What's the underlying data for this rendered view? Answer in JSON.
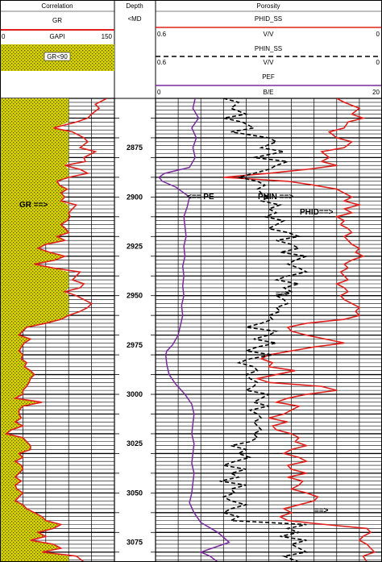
{
  "header": {
    "correlation": {
      "title": "Correlation",
      "curve_name": "GR",
      "unit": "GAPI",
      "scale_min": "0",
      "scale_max": "150",
      "fill_label": "GR<90",
      "fill_color": "#d7d300"
    },
    "depth": {
      "title": "Depth",
      "unit": "<MD"
    },
    "porosity": {
      "title": "Porosity",
      "phid_name": "PHID_SS",
      "phid_unit": "V/V",
      "phid_left": "0.6",
      "phid_right": "0",
      "phin_name": "PHIN_SS",
      "phin_unit": "V/V",
      "phin_left": "0.6",
      "phin_right": "0",
      "pef_name": "PEF",
      "pef_unit": "B/E",
      "pef_left": "0",
      "pef_right": "20"
    }
  },
  "annotations": {
    "gr": "GR ==>",
    "pe": "<== PE",
    "phin": "PHIN ==>",
    "phid": "PHID==>",
    "arrow1": "==>",
    "arrow2": "==>"
  },
  "colors": {
    "gr": "#e0201c",
    "phid": "#e0201c",
    "phin": "#000000",
    "pef": "#7a2c9e",
    "fill": "#d7d300"
  },
  "chart_data": {
    "type": "line",
    "depth_unit": "MD",
    "depth_range": [
      2850,
      3085
    ],
    "depth_ticks": [
      2875,
      2900,
      2925,
      2950,
      2975,
      3000,
      3025,
      3050,
      3075
    ],
    "gr_cutoff": 90,
    "series": [
      {
        "name": "GR",
        "unit": "GAPI",
        "scale": [
          0,
          150
        ],
        "depth": [
          2850,
          2853,
          2855,
          2858,
          2860,
          2862,
          2865,
          2867,
          2870,
          2872,
          2875,
          2877,
          2880,
          2882,
          2884,
          2886,
          2888,
          2890,
          2892,
          2894,
          2896,
          2898,
          2900,
          2902,
          2904,
          2906,
          2908,
          2910,
          2912,
          2914,
          2916,
          2918,
          2920,
          2922,
          2924,
          2926,
          2928,
          2930,
          2932,
          2934,
          2936,
          2938,
          2940,
          2942,
          2944,
          2946,
          2948,
          2950,
          2952,
          2954,
          2956,
          2958,
          2960,
          2962,
          2964,
          2966,
          2968,
          2970,
          2972,
          2974,
          2976,
          2978,
          2980,
          2982,
          2984,
          2986,
          2988,
          2990,
          2992,
          2994,
          2996,
          2998,
          3000,
          3002,
          3004,
          3006,
          3008,
          3010,
          3012,
          3014,
          3016,
          3018,
          3020,
          3022,
          3024,
          3026,
          3028,
          3030,
          3032,
          3034,
          3036,
          3038,
          3040,
          3042,
          3044,
          3046,
          3048,
          3050,
          3052,
          3054,
          3056,
          3058,
          3060,
          3062,
          3064,
          3066,
          3068,
          3070,
          3072,
          3074,
          3076,
          3078,
          3080,
          3082,
          3085
        ],
        "values": [
          140,
          125,
          130,
          120,
          115,
          100,
          70,
          95,
          110,
          115,
          105,
          125,
          110,
          112,
          85,
          105,
          115,
          90,
          75,
          78,
          88,
          80,
          85,
          80,
          100,
          95,
          90,
          92,
          88,
          80,
          86,
          90,
          75,
          85,
          60,
          50,
          65,
          85,
          72,
          45,
          70,
          105,
          100,
          95,
          110,
          105,
          85,
          100,
          110,
          120,
          115,
          105,
          90,
          80,
          60,
          35,
          30,
          25,
          40,
          32,
          28,
          25,
          30,
          28,
          35,
          32,
          40,
          45,
          40,
          38,
          35,
          30,
          30,
          20,
          55,
          30,
          25,
          25,
          28,
          20,
          30,
          15,
          8,
          30,
          35,
          40,
          40,
          25,
          30,
          20,
          28,
          30,
          25,
          20,
          28,
          20,
          22,
          30,
          25,
          20,
          30,
          35,
          45,
          55,
          60,
          80,
          70,
          50,
          60,
          40,
          70,
          80,
          55,
          100,
          110
        ]
      },
      {
        "name": "PHID",
        "unit": "V/V",
        "scale": [
          0.6,
          0
        ],
        "depth": [
          2850,
          2852,
          2855,
          2858,
          2860,
          2862,
          2865,
          2867,
          2870,
          2872,
          2875,
          2877,
          2880,
          2882,
          2884,
          2886,
          2888,
          2890,
          2892,
          2894,
          2896,
          2898,
          2900,
          2902,
          2904,
          2906,
          2908,
          2910,
          2912,
          2914,
          2916,
          2918,
          2920,
          2922,
          2924,
          2926,
          2928,
          2930,
          2932,
          2934,
          2936,
          2938,
          2940,
          2942,
          2944,
          2946,
          2948,
          2950,
          2952,
          2954,
          2956,
          2958,
          2960,
          2962,
          2964,
          2966,
          2968,
          2970,
          2972,
          2974,
          2976,
          2978,
          2980,
          2982,
          2984,
          2986,
          2988,
          2990,
          2992,
          2994,
          2996,
          2998,
          3000,
          3002,
          3004,
          3006,
          3008,
          3010,
          3012,
          3014,
          3016,
          3018,
          3020,
          3022,
          3024,
          3026,
          3028,
          3030,
          3032,
          3034,
          3036,
          3038,
          3040,
          3042,
          3044,
          3046,
          3048,
          3050,
          3052,
          3054,
          3056,
          3058,
          3060,
          3062,
          3064,
          3066,
          3068,
          3070,
          3072,
          3074,
          3076,
          3078,
          3080,
          3082,
          3085
        ],
        "values": [
          0.12,
          0.1,
          0.06,
          0.08,
          0.05,
          0.09,
          0.1,
          0.14,
          0.12,
          0.08,
          0.1,
          0.16,
          0.14,
          0.16,
          0.12,
          0.2,
          0.3,
          0.42,
          0.25,
          0.18,
          0.12,
          0.1,
          0.08,
          0.1,
          0.06,
          0.1,
          0.08,
          0.12,
          0.1,
          0.11,
          0.09,
          0.08,
          0.1,
          0.09,
          0.08,
          0.06,
          0.07,
          0.05,
          0.08,
          0.1,
          0.09,
          0.11,
          0.1,
          0.09,
          0.12,
          0.1,
          0.09,
          0.11,
          0.1,
          0.08,
          0.06,
          0.07,
          0.06,
          0.1,
          0.2,
          0.25,
          0.24,
          0.2,
          0.15,
          0.1,
          0.18,
          0.24,
          0.3,
          0.32,
          0.29,
          0.3,
          0.23,
          0.28,
          0.33,
          0.3,
          0.16,
          0.12,
          0.2,
          0.25,
          0.28,
          0.22,
          0.24,
          0.26,
          0.3,
          0.25,
          0.29,
          0.28,
          0.24,
          0.22,
          0.23,
          0.2,
          0.24,
          0.26,
          0.22,
          0.2,
          0.25,
          0.24,
          0.2,
          0.25,
          0.21,
          0.22,
          0.24,
          0.2,
          0.17,
          0.18,
          0.22,
          0.26,
          0.24,
          0.27,
          0.25,
          0.15,
          0.04,
          0.03,
          0.05,
          0.06,
          0.04,
          0.03,
          0.02,
          0.05,
          0.04
        ]
      },
      {
        "name": "PHIN",
        "unit": "V/V",
        "scale": [
          0.6,
          0
        ],
        "depth": [
          2850,
          2852,
          2855,
          2858,
          2860,
          2862,
          2865,
          2867,
          2870,
          2872,
          2875,
          2877,
          2880,
          2882,
          2884,
          2886,
          2888,
          2890,
          2892,
          2894,
          2896,
          2898,
          2900,
          2902,
          2904,
          2906,
          2908,
          2910,
          2912,
          2914,
          2916,
          2918,
          2920,
          2922,
          2924,
          2926,
          2928,
          2930,
          2932,
          2934,
          2936,
          2938,
          2940,
          2942,
          2944,
          2946,
          2948,
          2950,
          2952,
          2954,
          2956,
          2958,
          2960,
          2962,
          2964,
          2966,
          2968,
          2970,
          2972,
          2974,
          2976,
          2978,
          2980,
          2982,
          2984,
          2986,
          2988,
          2990,
          2992,
          2994,
          2996,
          2998,
          3000,
          3002,
          3004,
          3006,
          3008,
          3010,
          3012,
          3014,
          3016,
          3018,
          3020,
          3022,
          3024,
          3026,
          3028,
          3030,
          3032,
          3034,
          3036,
          3038,
          3040,
          3042,
          3044,
          3046,
          3048,
          3050,
          3052,
          3054,
          3056,
          3058,
          3060,
          3062,
          3064,
          3066,
          3068,
          3070,
          3072,
          3074,
          3076,
          3078,
          3080,
          3082,
          3085
        ],
        "values": [
          0.42,
          0.38,
          0.4,
          0.36,
          0.42,
          0.37,
          0.34,
          0.4,
          0.3,
          0.28,
          0.32,
          0.26,
          0.34,
          0.25,
          0.28,
          0.3,
          0.34,
          0.38,
          0.33,
          0.31,
          0.33,
          0.32,
          0.3,
          0.32,
          0.27,
          0.3,
          0.28,
          0.31,
          0.26,
          0.28,
          0.3,
          0.25,
          0.22,
          0.28,
          0.24,
          0.22,
          0.27,
          0.2,
          0.23,
          0.25,
          0.22,
          0.2,
          0.25,
          0.28,
          0.22,
          0.26,
          0.24,
          0.28,
          0.26,
          0.25,
          0.28,
          0.27,
          0.3,
          0.29,
          0.32,
          0.36,
          0.28,
          0.3,
          0.34,
          0.28,
          0.33,
          0.36,
          0.29,
          0.35,
          0.38,
          0.34,
          0.33,
          0.36,
          0.35,
          0.33,
          0.34,
          0.36,
          0.3,
          0.32,
          0.34,
          0.3,
          0.35,
          0.33,
          0.32,
          0.34,
          0.33,
          0.32,
          0.34,
          0.33,
          0.35,
          0.4,
          0.36,
          0.38,
          0.35,
          0.39,
          0.42,
          0.36,
          0.4,
          0.38,
          0.43,
          0.36,
          0.4,
          0.39,
          0.42,
          0.4,
          0.36,
          0.4,
          0.42,
          0.38,
          0.4,
          0.2,
          0.25,
          0.22,
          0.27,
          0.2,
          0.24,
          0.22,
          0.2,
          0.26,
          0.22
        ]
      },
      {
        "name": "PEF",
        "unit": "B/E",
        "scale": [
          0,
          20
        ],
        "depth": [
          2850,
          2855,
          2860,
          2865,
          2870,
          2875,
          2880,
          2885,
          2888,
          2890,
          2892,
          2895,
          2900,
          2905,
          2910,
          2915,
          2920,
          2925,
          2930,
          2935,
          2940,
          2945,
          2950,
          2955,
          2960,
          2965,
          2970,
          2975,
          2978,
          2980,
          2985,
          2990,
          2995,
          3000,
          3005,
          3010,
          3015,
          3020,
          3025,
          3030,
          3035,
          3040,
          3045,
          3050,
          3055,
          3060,
          3065,
          3070,
          3075,
          3078,
          3080,
          3082,
          3085
        ],
        "values": [
          3.5,
          3.3,
          3.8,
          3.2,
          3.6,
          3.3,
          3.5,
          3.0,
          0.8,
          0.3,
          0.6,
          1.8,
          3.0,
          2.8,
          2.5,
          2.6,
          2.7,
          2.5,
          2.6,
          2.4,
          2.5,
          2.4,
          2.5,
          2.3,
          2.4,
          2.2,
          2.0,
          1.5,
          1.0,
          0.9,
          1.0,
          1.2,
          1.8,
          2.6,
          3.2,
          3.4,
          3.3,
          3.2,
          3.4,
          3.3,
          3.2,
          3.4,
          3.3,
          3.2,
          3.0,
          3.4,
          4.0,
          5.5,
          6.5,
          5.0,
          4.0,
          4.8,
          5.5
        ]
      }
    ]
  }
}
